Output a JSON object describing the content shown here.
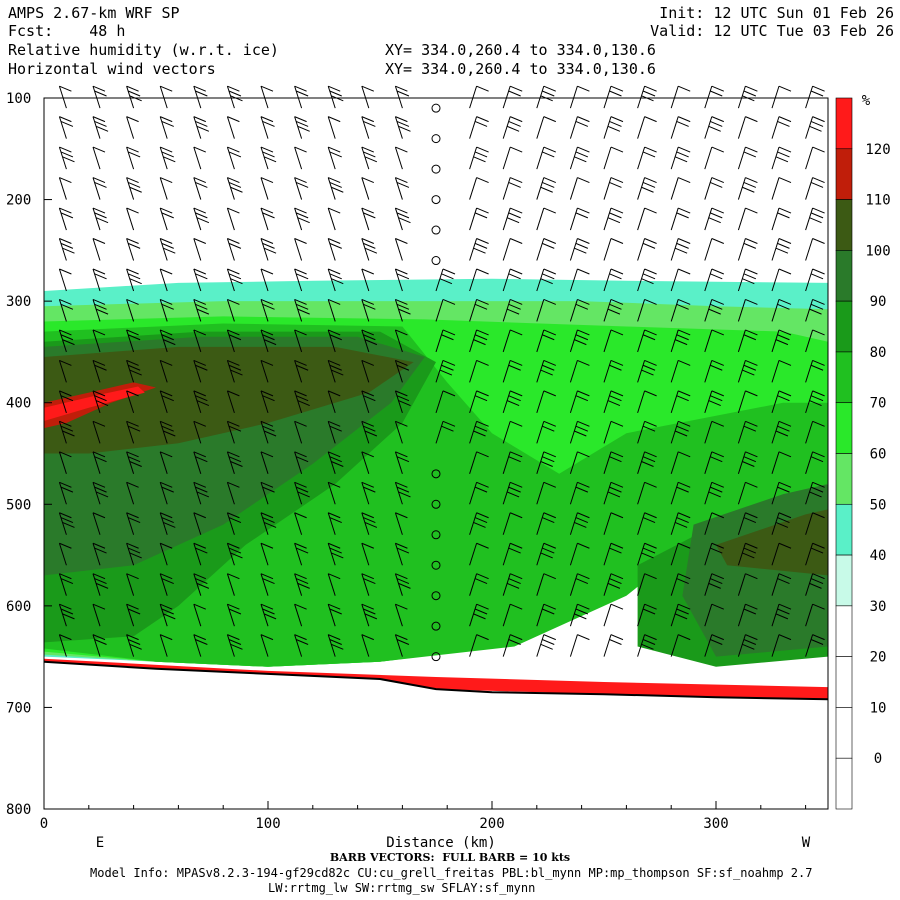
{
  "header": {
    "model": "AMPS 2.67-km WRF SP",
    "fcst_label": "Fcst:",
    "fcst_value": "48 h",
    "field1": "Relative humidity (w.r.t. ice)",
    "field2": "Horizontal wind vectors",
    "init": "Init: 12 UTC Sun 01 Feb 26",
    "valid": "Valid: 12 UTC Tue 03 Feb 26",
    "xy1": "XY= 334.0,260.4 to 334.0,130.6",
    "xy2": "XY= 334.0,260.4 to 334.0,130.6"
  },
  "footer": {
    "barb_note": "BARB VECTORS:  FULL BARB = 10 kts",
    "model_info": "Model Info: MPASv8.2.3-194-gf29cd82c CU:cu_grell_freitas PBL:bl_mynn MP:mp_thompson SF:sf_noahmp 2.7",
    "model_info2": "LW:rrtmg_lw SW:rrtmg_sw SFLAY:sf_mynn"
  },
  "chart_data": {
    "type": "heatmap",
    "title": "Relative humidity (w.r.t. ice)",
    "overlay": "Horizontal wind vectors (barbs, full barb = 10 kts)",
    "xlabel": "Distance (km)",
    "ylabel": "",
    "x_range": [
      0,
      350
    ],
    "y_range_hpa": [
      100,
      800
    ],
    "y_inverted": true,
    "x_ticks": [
      0,
      100,
      200,
      300
    ],
    "y_ticks": [
      100,
      200,
      300,
      400,
      500,
      600,
      700,
      800
    ],
    "x_end_labels": {
      "left": "E",
      "right": "W"
    },
    "colorbar": {
      "unit": "%",
      "levels": [
        0,
        10,
        20,
        30,
        40,
        50,
        60,
        70,
        80,
        90,
        100,
        110,
        120
      ],
      "colors": [
        "#ffffff",
        "#ffffff",
        "#ffffff",
        "#ffffff",
        "#c8fae8",
        "#5af0c8",
        "#64e664",
        "#2ae82a",
        "#20c020",
        "#1a9a1a",
        "#2a7a2a",
        "#3c5a14",
        "#c01e0a",
        "#ff1a1a"
      ]
    },
    "terrain_surface_hpa": [
      [
        0,
        655
      ],
      [
        50,
        662
      ],
      [
        100,
        667
      ],
      [
        150,
        672
      ],
      [
        175,
        682
      ],
      [
        200,
        685
      ],
      [
        250,
        687
      ],
      [
        300,
        690
      ],
      [
        350,
        692
      ]
    ],
    "rh_regions": [
      {
        "level": 40,
        "polygon": [
          [
            0,
            290
          ],
          [
            60,
            282
          ],
          [
            120,
            280
          ],
          [
            200,
            278
          ],
          [
            260,
            280
          ],
          [
            350,
            282
          ],
          [
            350,
            420
          ],
          [
            300,
            455
          ],
          [
            260,
            520
          ],
          [
            230,
            590
          ],
          [
            200,
            640
          ],
          [
            150,
            655
          ],
          [
            100,
            660
          ],
          [
            50,
            655
          ],
          [
            0,
            650
          ]
        ]
      },
      {
        "level": 50,
        "polygon": [
          [
            0,
            305
          ],
          [
            80,
            300
          ],
          [
            160,
            300
          ],
          [
            240,
            300
          ],
          [
            300,
            305
          ],
          [
            350,
            308
          ],
          [
            350,
            430
          ],
          [
            300,
            470
          ],
          [
            270,
            530
          ],
          [
            240,
            590
          ],
          [
            200,
            640
          ],
          [
            150,
            655
          ],
          [
            100,
            660
          ],
          [
            50,
            655
          ],
          [
            0,
            648
          ]
        ]
      },
      {
        "level": 60,
        "polygon": [
          [
            0,
            320
          ],
          [
            80,
            315
          ],
          [
            170,
            318
          ],
          [
            260,
            325
          ],
          [
            330,
            330
          ],
          [
            350,
            340
          ],
          [
            350,
            440
          ],
          [
            310,
            475
          ],
          [
            275,
            535
          ],
          [
            245,
            595
          ],
          [
            205,
            640
          ],
          [
            150,
            655
          ],
          [
            100,
            660
          ],
          [
            50,
            655
          ],
          [
            0,
            645
          ]
        ]
      },
      {
        "level": 70,
        "polygon": [
          [
            0,
            330
          ],
          [
            80,
            322
          ],
          [
            160,
            325
          ],
          [
            180,
            380
          ],
          [
            200,
            430
          ],
          [
            230,
            470
          ],
          [
            260,
            430
          ],
          [
            330,
            400
          ],
          [
            350,
            400
          ],
          [
            350,
            480
          ],
          [
            300,
            520
          ],
          [
            260,
            590
          ],
          [
            210,
            640
          ],
          [
            150,
            655
          ],
          [
            100,
            660
          ],
          [
            50,
            655
          ],
          [
            0,
            642
          ]
        ]
      },
      {
        "level": 80,
        "polygon": [
          [
            0,
            340
          ],
          [
            70,
            330
          ],
          [
            150,
            330
          ],
          [
            175,
            360
          ],
          [
            160,
            420
          ],
          [
            130,
            480
          ],
          [
            90,
            540
          ],
          [
            60,
            600
          ],
          [
            40,
            630
          ],
          [
            0,
            636
          ]
        ]
      },
      {
        "level": 80,
        "polygon": [
          [
            265,
            560
          ],
          [
            300,
            520
          ],
          [
            350,
            500
          ],
          [
            350,
            650
          ],
          [
            300,
            660
          ],
          [
            265,
            640
          ]
        ]
      },
      {
        "level": 90,
        "polygon": [
          [
            0,
            345
          ],
          [
            70,
            335
          ],
          [
            140,
            335
          ],
          [
            170,
            355
          ],
          [
            155,
            400
          ],
          [
            120,
            460
          ],
          [
            80,
            520
          ],
          [
            40,
            560
          ],
          [
            0,
            570
          ]
        ]
      },
      {
        "level": 90,
        "polygon": [
          [
            290,
            520
          ],
          [
            330,
            490
          ],
          [
            350,
            480
          ],
          [
            350,
            640
          ],
          [
            300,
            650
          ],
          [
            285,
            590
          ]
        ]
      },
      {
        "level": 100,
        "polygon": [
          [
            0,
            355
          ],
          [
            60,
            345
          ],
          [
            130,
            345
          ],
          [
            165,
            360
          ],
          [
            145,
            390
          ],
          [
            100,
            420
          ],
          [
            60,
            440
          ],
          [
            20,
            450
          ],
          [
            0,
            450
          ]
        ]
      },
      {
        "level": 100,
        "polygon": [
          [
            300,
            540
          ],
          [
            340,
            510
          ],
          [
            350,
            505
          ],
          [
            350,
            570
          ],
          [
            305,
            560
          ]
        ]
      },
      {
        "level": 110,
        "polygon": [
          [
            0,
            400
          ],
          [
            20,
            390
          ],
          [
            40,
            380
          ],
          [
            50,
            385
          ],
          [
            30,
            400
          ],
          [
            10,
            420
          ],
          [
            0,
            425
          ]
        ]
      },
      {
        "level": 120,
        "polygon": [
          [
            0,
            405
          ],
          [
            25,
            392
          ],
          [
            42,
            384
          ],
          [
            45,
            390
          ],
          [
            20,
            405
          ],
          [
            0,
            418
          ]
        ]
      },
      {
        "level": 120,
        "polygon": [
          [
            0,
            652
          ],
          [
            100,
            664
          ],
          [
            175,
            670
          ],
          [
            250,
            675
          ],
          [
            350,
            680
          ],
          [
            350,
            692
          ],
          [
            250,
            687
          ],
          [
            175,
            682
          ],
          [
            100,
            667
          ],
          [
            0,
            656
          ]
        ]
      }
    ],
    "barb_columns_km": [
      10,
      25,
      40,
      55,
      70,
      85,
      100,
      115,
      130,
      145,
      160,
      175,
      190,
      205,
      220,
      235,
      250,
      265,
      280,
      295,
      310,
      325,
      340
    ],
    "barb_levels_hpa": [
      110,
      140,
      170,
      200,
      230,
      260,
      290,
      320,
      350,
      380,
      410,
      440,
      470,
      500,
      530,
      560,
      590,
      620,
      650
    ],
    "calm_column_km": 175,
    "calm_levels_hpa": [
      110,
      140,
      170,
      200,
      230,
      260,
      470,
      500,
      530,
      560,
      590,
      620,
      650
    ]
  }
}
